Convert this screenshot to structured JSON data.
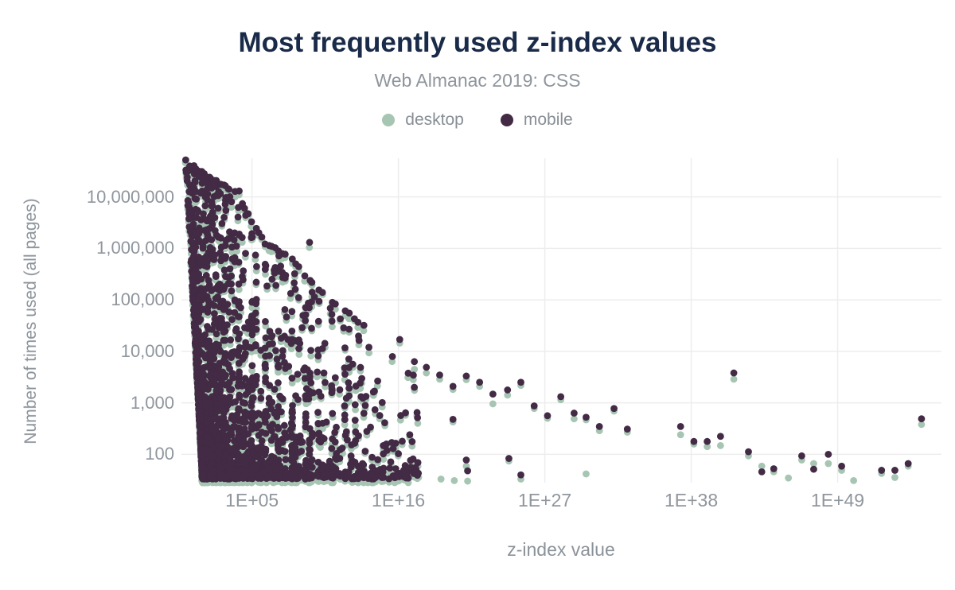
{
  "chart_data": {
    "type": "scatter",
    "title": "Most frequently used z-index values",
    "subtitle": "Web Almanac 2019: CSS",
    "xlabel": "z-index value",
    "ylabel": "Number of times used (all pages)",
    "x_scale": "log10",
    "y_scale": "log10",
    "x_domain_log10": [
      -0.3,
      56.8
    ],
    "y_domain_log10": [
      1.45,
      7.75
    ],
    "x_ticks": [
      {
        "label": "1E+05",
        "log10": 5
      },
      {
        "label": "1E+16",
        "log10": 16
      },
      {
        "label": "1E+27",
        "log10": 27
      },
      {
        "label": "1E+38",
        "log10": 38
      },
      {
        "label": "1E+49",
        "log10": 49
      }
    ],
    "y_ticks": [
      {
        "label": "100",
        "log10": 2
      },
      {
        "label": "1,000",
        "log10": 3
      },
      {
        "label": "10,000",
        "log10": 4
      },
      {
        "label": "100,000",
        "log10": 5
      },
      {
        "label": "1,000,000",
        "log10": 6
      },
      {
        "label": "10,000,000",
        "log10": 7
      }
    ],
    "series": [
      {
        "name": "desktop",
        "color": "#a6c5b2"
      },
      {
        "name": "mobile",
        "color": "#432a45"
      }
    ],
    "colors": {
      "title": "#1a2b49",
      "axis_text": "#8f969d",
      "grid": "#ededed",
      "background": "#ffffff"
    },
    "max_count_log10": 7.72,
    "min_count_log10": 1.45,
    "dense_cloud": {
      "pairs_per_weight": 11,
      "x_jitter": 0.1,
      "y_min_log10": 1.52,
      "y_exponent": 3.2,
      "desktop_dy_min": 0.04,
      "desktop_dy_rand": 0.07,
      "left_bound_base": 1.28,
      "left_bound_slope": 0.205,
      "envelope": [
        [
          0,
          7.72
        ],
        [
          1,
          7.5
        ],
        [
          2,
          7.35
        ],
        [
          3,
          7.2
        ],
        [
          4,
          7.05
        ],
        [
          5,
          6.5
        ],
        [
          6,
          6.1
        ],
        [
          7,
          5.95
        ],
        [
          8,
          5.8
        ],
        [
          9,
          5.45
        ],
        [
          10,
          5.2
        ],
        [
          11,
          4.95
        ],
        [
          12,
          4.8
        ],
        [
          13,
          4.55
        ],
        [
          15,
          4.4
        ],
        [
          17.5,
          4.25
        ]
      ],
      "columns": [
        [
          0,
          10,
          7.72
        ],
        [
          0.3,
          7,
          7.6
        ],
        [
          0.48,
          7,
          7.5
        ],
        [
          0.6,
          5,
          null
        ],
        [
          0.7,
          6,
          7.45
        ],
        [
          0.78,
          5,
          null
        ],
        [
          0.9,
          5,
          null
        ],
        [
          1,
          9,
          7.5
        ],
        [
          1.18,
          4,
          null
        ],
        [
          1.3,
          5,
          7.35
        ],
        [
          1.4,
          3,
          null
        ],
        [
          1.48,
          5,
          7.3
        ],
        [
          1.6,
          4,
          null
        ],
        [
          1.7,
          4,
          7.2
        ],
        [
          1.78,
          3,
          null
        ],
        [
          1.9,
          3,
          null
        ],
        [
          2,
          8,
          7.3
        ],
        [
          2.18,
          3,
          null
        ],
        [
          2.3,
          4,
          null
        ],
        [
          2.48,
          4,
          7.1
        ],
        [
          2.6,
          3,
          null
        ],
        [
          2.7,
          3,
          null
        ],
        [
          2.9,
          3,
          null
        ],
        [
          3,
          7,
          7.2
        ],
        [
          3.18,
          2.5,
          null
        ],
        [
          3.3,
          3,
          null
        ],
        [
          3.48,
          3,
          6.9
        ],
        [
          3.7,
          2.5,
          null
        ],
        [
          4,
          7,
          7.1
        ],
        [
          4.3,
          2.5,
          null
        ],
        [
          4.48,
          2.5,
          null
        ],
        [
          4.7,
          2,
          null
        ],
        [
          5,
          6,
          6.5
        ],
        [
          5.3,
          1.8,
          null
        ],
        [
          5.48,
          1.8,
          null
        ],
        [
          5.7,
          1.5,
          null
        ],
        [
          6,
          4,
          6.1
        ],
        [
          6.3,
          1.4,
          null
        ],
        [
          6.48,
          1.4,
          null
        ],
        [
          6.7,
          1.2,
          null
        ],
        [
          7,
          3,
          5.95
        ],
        [
          7.3,
          1,
          null
        ],
        [
          7.48,
          1,
          null
        ],
        [
          8,
          2.5,
          5.8
        ],
        [
          8.3,
          0.9,
          null
        ],
        [
          8.48,
          0.8,
          null
        ],
        [
          9,
          2,
          5.45
        ],
        [
          9.33,
          2.6,
          6.12
        ],
        [
          9.48,
          0.8,
          null
        ],
        [
          10,
          1.5,
          5.2
        ],
        [
          10.3,
          0.7,
          null
        ],
        [
          11,
          1.2,
          4.95
        ],
        [
          11.3,
          0.6,
          null
        ],
        [
          12,
          1,
          4.8
        ],
        [
          12.3,
          0.5,
          null
        ],
        [
          12.7,
          0.4,
          null
        ],
        [
          13,
          0.7,
          4.55
        ]
      ],
      "continuum_count": 500,
      "continuum_x_max": 13.5,
      "continuum_x_exponent": 2.0
    },
    "mid_cloud": {
      "count": 110,
      "x_range": [
        13,
        17.5
      ],
      "y_exponent": 3.6
    },
    "tail_points": [
      [
        16.1,
        4.23,
        4.16
      ],
      [
        17.2,
        3.8,
        3.65
      ],
      [
        18.1,
        3.69,
        3.58
      ],
      [
        19.1,
        3.54,
        3.46
      ],
      [
        20.1,
        3.32,
        3.26
      ],
      [
        21.1,
        3.52,
        3.45
      ],
      [
        22.1,
        3.4,
        3.32
      ],
      [
        23.1,
        3.17,
        2.98
      ],
      [
        24.2,
        3.25,
        3.15
      ],
      [
        25.2,
        3.4,
        3.34
      ],
      [
        26.2,
        2.94,
        2.89
      ],
      [
        27.2,
        2.75,
        2.7
      ],
      [
        28.2,
        3.12,
        3.06
      ],
      [
        29.2,
        2.8,
        2.69
      ],
      [
        30.1,
        2.72,
        2.67
      ],
      [
        31.1,
        2.54,
        2.46
      ],
      [
        32.2,
        2.89,
        2.84
      ],
      [
        33.2,
        2.49,
        2.43
      ],
      [
        37.2,
        2.54,
        2.38
      ],
      [
        38.2,
        2.25,
        2.2
      ],
      [
        39.2,
        2.25,
        2.15
      ],
      [
        40.2,
        2.35,
        2.17
      ],
      [
        41.2,
        3.58,
        3.46
      ],
      [
        42.3,
        2.05,
        1.97
      ],
      [
        43.3,
        1.66,
        1.77
      ],
      [
        44.2,
        1.72,
        1.66
      ],
      [
        45.3,
        null,
        1.54
      ],
      [
        46.3,
        1.97,
        1.89
      ],
      [
        47.2,
        1.71,
        1.82
      ],
      [
        48.3,
        2.0,
        1.82
      ],
      [
        49.3,
        1.77,
        1.69
      ],
      [
        50.2,
        null,
        1.49
      ],
      [
        52.3,
        1.69,
        1.63
      ],
      [
        53.3,
        1.69,
        1.55
      ],
      [
        54.3,
        1.82,
        1.77
      ],
      [
        55.3,
        2.69,
        2.58
      ]
    ],
    "low_points": [
      [
        15.5,
        2.23,
        null
      ],
      [
        15.8,
        1.72,
        1.57
      ],
      [
        16.4,
        1.69,
        null
      ],
      [
        17.1,
        1.91,
        1.8
      ],
      [
        17.3,
        1.65,
        1.55
      ],
      [
        19.2,
        null,
        1.52
      ],
      [
        20.1,
        2.68,
        null
      ],
      [
        20.2,
        null,
        1.49
      ],
      [
        21.1,
        1.89,
        1.77
      ],
      [
        21.2,
        1.68,
        1.48
      ],
      [
        24.3,
        1.92,
        null
      ],
      [
        25.2,
        1.6,
        1.52
      ],
      [
        30.1,
        null,
        1.62
      ]
    ],
    "point_radius_px": 4.4
  }
}
